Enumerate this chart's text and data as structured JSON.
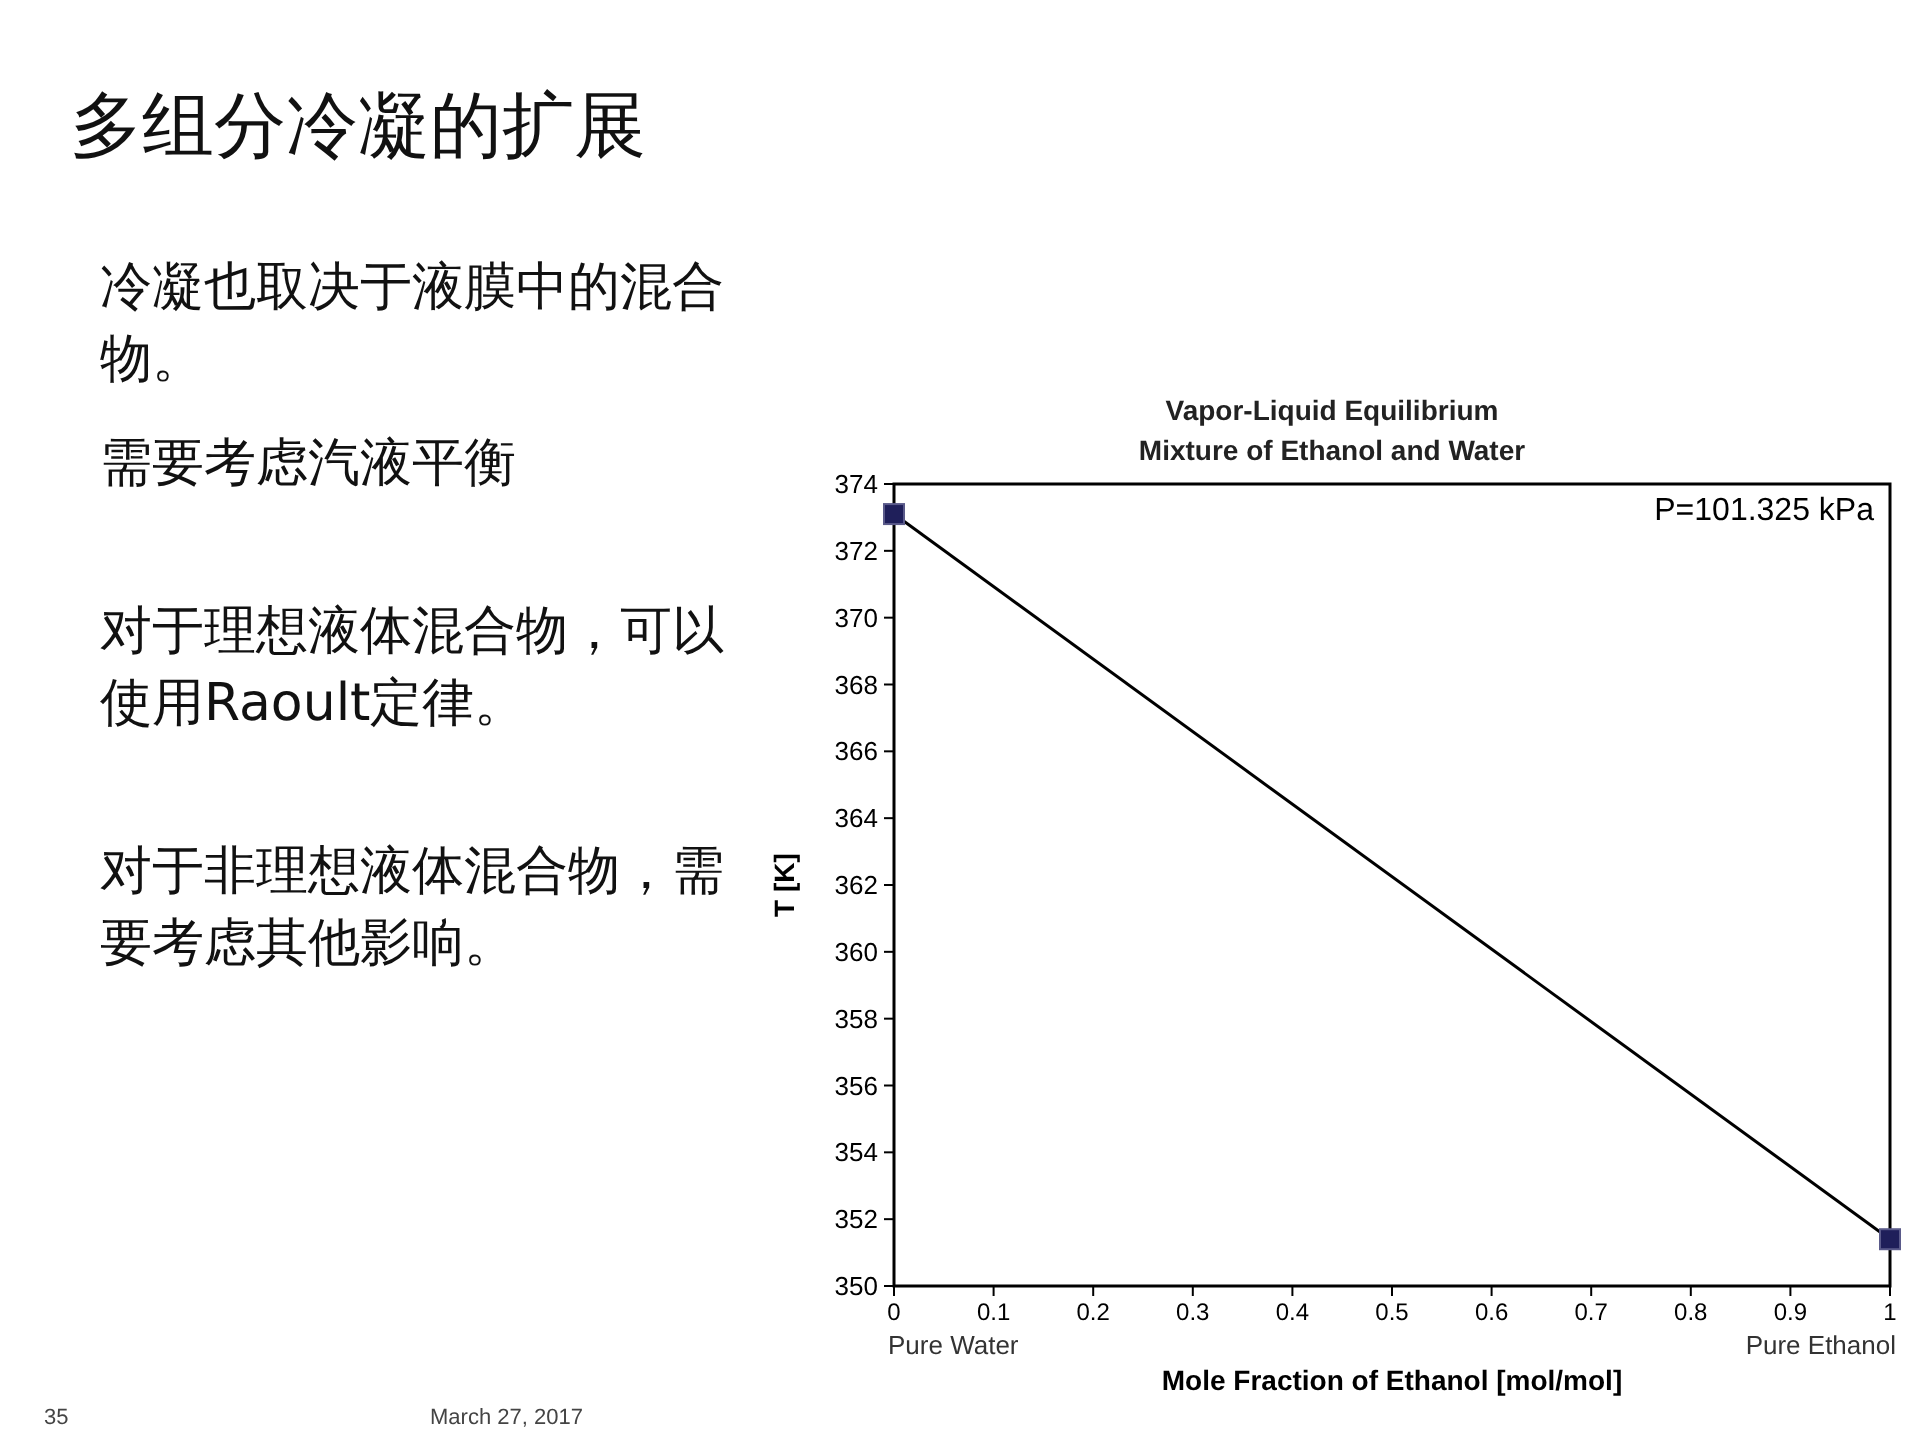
{
  "chart_data": {
    "type": "line",
    "title": "Vapor-Liquid Equilibrium",
    "subtitle": "Mixture of Ethanol and Water",
    "xlabel": "Mole Fraction of Ethanol [mol/mol]",
    "ylabel": "T [K]",
    "x": [
      0,
      1
    ],
    "series": [
      {
        "color": "#000000",
        "values": [
          373.1,
          351.4
        ]
      }
    ],
    "marker": "square",
    "line_style": "solid",
    "grid": false,
    "xlim": [
      0,
      1
    ],
    "xticks": [
      0,
      0.1,
      0.2,
      0.3,
      0.4,
      0.5,
      0.6,
      0.7,
      0.8,
      0.9,
      1
    ],
    "ylim": [
      350,
      374
    ],
    "yticks": [
      350,
      352,
      354,
      356,
      358,
      360,
      362,
      364,
      366,
      368,
      370,
      372,
      374
    ],
    "annotations": [
      "P=101.325 kPa",
      "Pure Water",
      "Pure Ethanol",
      "多组分冷凝的扩展",
      "冷凝也取决于液膜中的混合物。",
      "需要考虑汽液平衡",
      "对于理想液体混合物，可以使用Raoult定律。",
      "对于非理想液体混合物，需要考虑其他影响。",
      "35",
      "March 27, 2017"
    ]
  }
}
